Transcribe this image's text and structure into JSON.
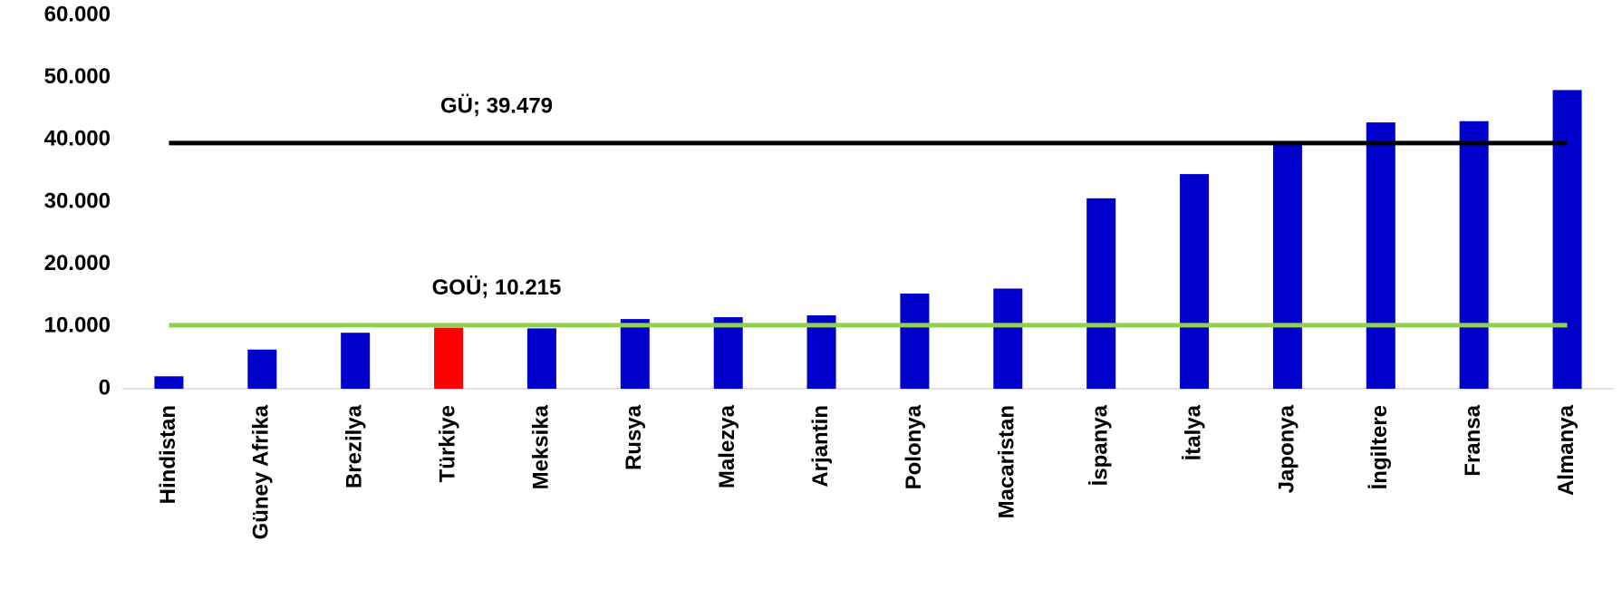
{
  "chart_data": {
    "type": "bar",
    "categories": [
      "Hindistan",
      "Güney Afrika",
      "Brezilya",
      "Türkiye",
      "Meksika",
      "Rusya",
      "Malezya",
      "Arjantin",
      "Polonya",
      "Macaristan",
      "İspanya",
      "İtalya",
      "Japonya",
      "İngiltere",
      "Fransa",
      "Almanya"
    ],
    "values": [
      2000,
      6300,
      9000,
      9800,
      9700,
      11200,
      11500,
      11800,
      15300,
      16100,
      30600,
      34500,
      39500,
      42800,
      43000,
      48000
    ],
    "colors": [
      "#0000cc",
      "#0000cc",
      "#0000cc",
      "#ff0000",
      "#0000cc",
      "#0000cc",
      "#0000cc",
      "#0000cc",
      "#0000cc",
      "#0000cc",
      "#0000cc",
      "#0000cc",
      "#0000cc",
      "#0000cc",
      "#0000cc",
      "#0000cc"
    ],
    "ylim": [
      0,
      60000
    ],
    "yticks": [
      0,
      {
        "value": 10000,
        "label": "10.000"
      },
      {
        "value": 20000,
        "label": "20.000"
      },
      {
        "value": 30000,
        "label": "30.000"
      },
      {
        "value": 40000,
        "label": "40.000"
      },
      {
        "value": 50000,
        "label": "50.000"
      },
      {
        "value": 60000,
        "label": "60.000"
      }
    ],
    "grid": false,
    "reference_lines": [
      {
        "value": 39479,
        "label": "GÜ; 39.479",
        "color": "#000000"
      },
      {
        "value": 10215,
        "label": "GOÜ; 10.215",
        "color": "#92d050"
      }
    ]
  }
}
